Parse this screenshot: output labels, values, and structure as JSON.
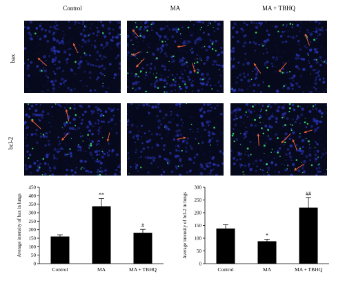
{
  "figure": {
    "columns": [
      "Control",
      "MA",
      "MA + TBHQ"
    ],
    "rows": [
      "bax",
      "bcl-2"
    ],
    "stain_colors": {
      "nuclei": "#2a35b8",
      "signal": "#3be07a",
      "arrow": "#e8633c",
      "background": "#07091c"
    }
  },
  "chart_data": [
    {
      "type": "bar",
      "categories": [
        "Control",
        "MA",
        "MA + TBHQ"
      ],
      "values": [
        160,
        338,
        182
      ],
      "errors": [
        10,
        45,
        20
      ],
      "annotations": [
        "",
        "**",
        "#"
      ],
      "ylabel": "Average intensity of bax in lungs",
      "ylim": [
        0,
        450
      ],
      "yticks": [
        0,
        50,
        100,
        150,
        200,
        250,
        300,
        350,
        400,
        450
      ],
      "grid": false,
      "bar_color": "#000000"
    },
    {
      "type": "bar",
      "categories": [
        "Control",
        "MA",
        "MA + TBHQ"
      ],
      "values": [
        138,
        88,
        220
      ],
      "errors": [
        15,
        8,
        40
      ],
      "annotations": [
        "",
        "*",
        "##"
      ],
      "ylabel": "Average intensity of bcl-2 in lungs",
      "ylim": [
        0,
        300
      ],
      "yticks": [
        0,
        50,
        100,
        150,
        200,
        250,
        300
      ],
      "grid": false,
      "bar_color": "#000000"
    }
  ]
}
